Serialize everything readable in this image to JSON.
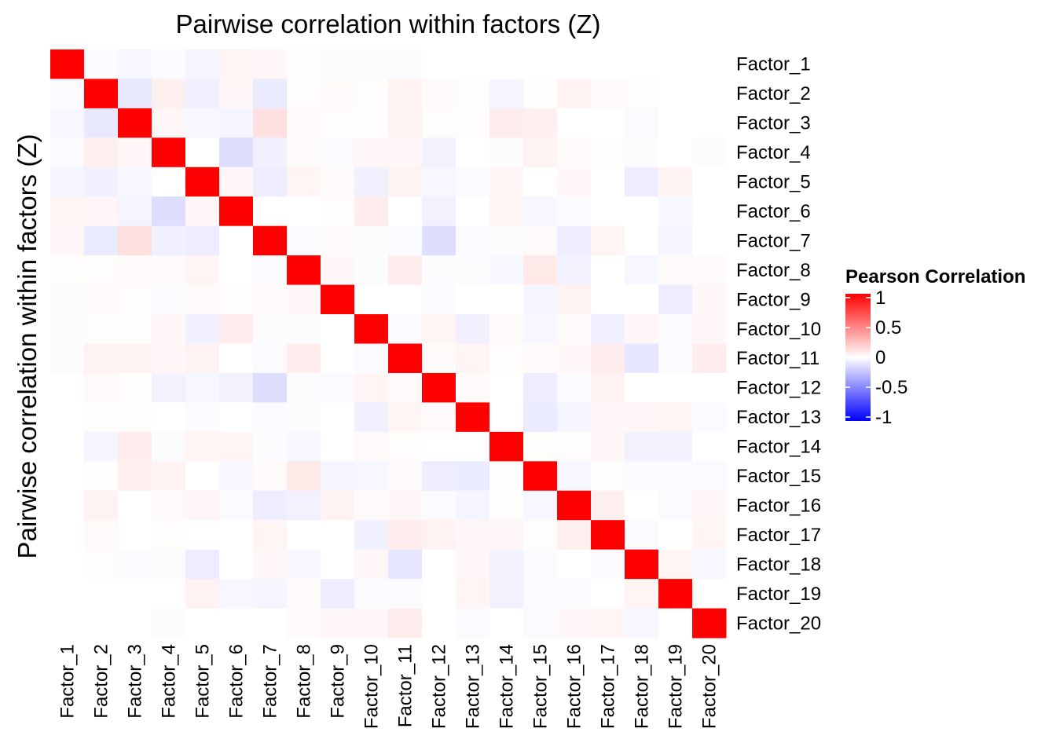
{
  "chart_data": {
    "type": "heatmap",
    "title": "Pairwise correlation within factors (Z)",
    "ylabel": "Pairwise correlation within factors (Z)",
    "xlabel": "",
    "row_labels": [
      "Factor_1",
      "Factor_2",
      "Factor_3",
      "Factor_4",
      "Factor_5",
      "Factor_6",
      "Factor_7",
      "Factor_8",
      "Factor_9",
      "Factor_10",
      "Factor_11",
      "Factor_12",
      "Factor_13",
      "Factor_14",
      "Factor_15",
      "Factor_16",
      "Factor_17",
      "Factor_18",
      "Factor_19",
      "Factor_20"
    ],
    "col_labels": [
      "Factor_1",
      "Factor_2",
      "Factor_3",
      "Factor_4",
      "Factor_5",
      "Factor_6",
      "Factor_7",
      "Factor_8",
      "Factor_9",
      "Factor_10",
      "Factor_11",
      "Factor_12",
      "Factor_13",
      "Factor_14",
      "Factor_15",
      "Factor_16",
      "Factor_17",
      "Factor_18",
      "Factor_19",
      "Factor_20"
    ],
    "values": [
      [
        1,
        -0.02,
        -0.03,
        -0.02,
        -0.04,
        0.04,
        0.03,
        0.01,
        -0.01,
        -0.01,
        -0.01,
        0,
        0,
        0,
        0,
        0,
        0,
        0,
        0,
        0
      ],
      [
        -0.02,
        1,
        -0.09,
        0.06,
        -0.06,
        0.03,
        -0.08,
        0.01,
        0.02,
        0.01,
        0.05,
        0.02,
        0.01,
        -0.04,
        0.01,
        0.05,
        0.02,
        0.01,
        0,
        0
      ],
      [
        -0.03,
        -0.09,
        1,
        0.03,
        -0.03,
        -0.04,
        0.12,
        0.02,
        0.01,
        0.01,
        0.05,
        0.01,
        0.01,
        0.07,
        0.06,
        0,
        0,
        -0.02,
        0,
        0
      ],
      [
        -0.02,
        0.06,
        0.03,
        1,
        0,
        -0.13,
        -0.06,
        0.02,
        -0.02,
        0.03,
        0.03,
        -0.05,
        0,
        -0.01,
        0.05,
        0.02,
        0.01,
        -0.01,
        0,
        -0.01
      ],
      [
        -0.04,
        -0.06,
        -0.03,
        0,
        1,
        0.03,
        -0.07,
        0.04,
        0.02,
        -0.06,
        0.05,
        -0.03,
        -0.02,
        0.04,
        0,
        0.03,
        0,
        -0.07,
        0.05,
        0
      ],
      [
        0.04,
        0.03,
        -0.04,
        -0.13,
        0.03,
        1,
        0,
        0,
        0.01,
        0.07,
        0,
        -0.05,
        0,
        0.04,
        -0.03,
        -0.02,
        0,
        0,
        -0.03,
        0
      ],
      [
        0.03,
        -0.08,
        0.12,
        -0.06,
        -0.07,
        0,
        1,
        -0.02,
        0.02,
        -0.01,
        -0.02,
        -0.13,
        -0.02,
        -0.01,
        0.02,
        -0.07,
        0.04,
        0,
        -0.04,
        0
      ],
      [
        0.01,
        0.01,
        0.02,
        0.02,
        0.04,
        0,
        -0.02,
        1,
        0.03,
        -0.01,
        0.07,
        -0.01,
        -0.01,
        -0.03,
        0.09,
        -0.05,
        0,
        -0.03,
        0.02,
        0.02
      ],
      [
        -0.01,
        0.02,
        0.01,
        -0.02,
        0.02,
        0.01,
        0.02,
        0.03,
        1,
        0,
        0,
        -0.02,
        0,
        0,
        -0.04,
        0.05,
        0,
        0,
        -0.07,
        0.03
      ],
      [
        -0.01,
        0.01,
        0.01,
        0.03,
        -0.06,
        0.07,
        -0.01,
        -0.01,
        0,
        1,
        -0.02,
        0.04,
        -0.06,
        0.02,
        -0.03,
        0.02,
        -0.06,
        0.03,
        -0.02,
        0.03
      ],
      [
        -0.01,
        0.05,
        0.05,
        0.03,
        0.05,
        0,
        -0.02,
        0.07,
        0,
        -0.02,
        1,
        0.02,
        0.04,
        0.01,
        0.02,
        0.03,
        0.07,
        -0.1,
        -0.02,
        0.07
      ],
      [
        0,
        0.02,
        0.01,
        -0.05,
        -0.03,
        -0.05,
        -0.13,
        -0.01,
        -0.02,
        0.04,
        0.02,
        1,
        0.02,
        0,
        -0.07,
        -0.02,
        0.05,
        0,
        0,
        0
      ],
      [
        0,
        0.01,
        0.01,
        0,
        -0.02,
        0,
        -0.02,
        -0.01,
        0,
        -0.06,
        0.04,
        0.02,
        1,
        0,
        -0.08,
        -0.04,
        0.03,
        0.03,
        0.04,
        -0.02
      ],
      [
        0,
        -0.04,
        0.07,
        -0.01,
        0.04,
        0.04,
        -0.01,
        -0.03,
        0,
        0.02,
        0.01,
        0,
        0,
        1,
        0.01,
        0.01,
        0.03,
        -0.05,
        -0.05,
        0
      ],
      [
        0,
        0.01,
        0.06,
        0.05,
        0,
        -0.03,
        0.02,
        0.09,
        -0.04,
        -0.03,
        0.02,
        -0.07,
        -0.08,
        0.01,
        1,
        -0.03,
        0.01,
        -0.02,
        -0.02,
        -0.02
      ],
      [
        0,
        0.05,
        0,
        0.02,
        0.03,
        -0.02,
        -0.07,
        -0.05,
        0.05,
        0.02,
        0.03,
        -0.02,
        -0.04,
        0.01,
        -0.03,
        1,
        0.06,
        0,
        -0.02,
        0.03
      ],
      [
        0,
        0.02,
        0,
        0.01,
        0,
        0,
        0.04,
        0,
        0,
        -0.06,
        0.07,
        0.05,
        0.03,
        0.03,
        0.01,
        0.06,
        1,
        -0.02,
        0,
        0.04
      ],
      [
        0,
        0.01,
        -0.02,
        -0.01,
        -0.07,
        0,
        0.03,
        -0.03,
        0,
        0.03,
        -0.1,
        0,
        0.03,
        -0.05,
        -0.02,
        0,
        -0.02,
        1,
        0.04,
        -0.03
      ],
      [
        0,
        0,
        0,
        0,
        0.05,
        -0.03,
        -0.04,
        0.02,
        -0.07,
        -0.02,
        -0.02,
        0,
        0.04,
        -0.05,
        -0.02,
        -0.02,
        0,
        0.04,
        1,
        0
      ],
      [
        0,
        0,
        0,
        -0.01,
        0,
        0,
        0,
        0.02,
        0.03,
        0.03,
        0.07,
        0,
        -0.02,
        0,
        -0.02,
        0.03,
        0.04,
        -0.03,
        0,
        1
      ]
    ],
    "color_scale": {
      "low": "#0000ff",
      "mid": "#ffffff",
      "high": "#ff0000",
      "limits": [
        -1,
        1
      ]
    },
    "legend": {
      "title": "Pearson Correlation",
      "breaks": [
        1,
        0.5,
        0,
        -0.5,
        -1
      ],
      "labels": [
        "1",
        "0.5",
        "0",
        "-0.5",
        "-1"
      ],
      "position": "right"
    }
  }
}
